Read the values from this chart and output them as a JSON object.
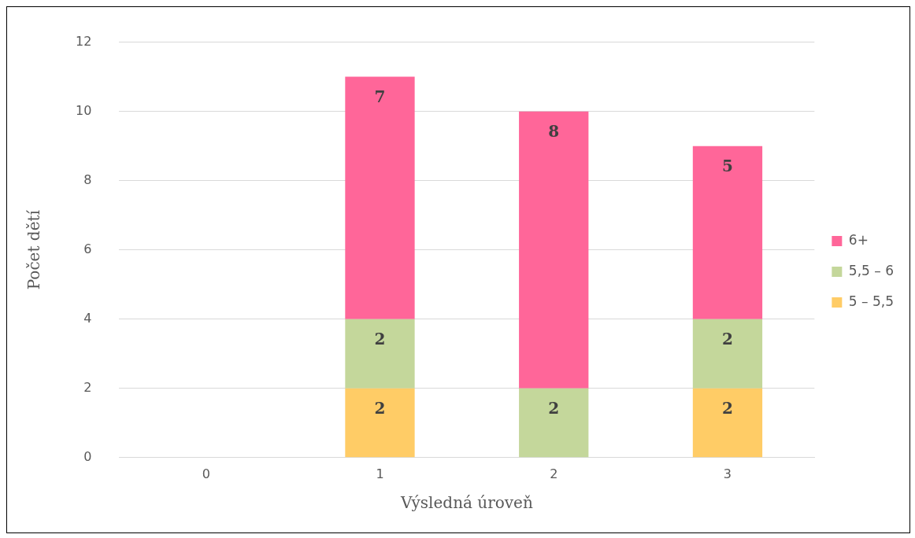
{
  "chart_data": {
    "type": "bar",
    "stacked": true,
    "xlabel": "Výsledná úroveň",
    "ylabel": "Počet dětí",
    "categories": [
      "0",
      "1",
      "2",
      "3"
    ],
    "series": [
      {
        "name": "5 – 5,5",
        "color": "#ffcc66",
        "values": [
          null,
          2,
          null,
          2
        ]
      },
      {
        "name": "5,5 – 6",
        "color": "#c4d79b",
        "values": [
          null,
          2,
          2,
          2
        ]
      },
      {
        "name": "6+",
        "color": "#ff6699",
        "values": [
          null,
          7,
          8,
          5
        ]
      }
    ],
    "ylim": [
      0,
      12
    ],
    "yticks": [
      0,
      2,
      4,
      6,
      8,
      10,
      12
    ],
    "grid": "y",
    "legend": "right",
    "data_labels": true
  }
}
